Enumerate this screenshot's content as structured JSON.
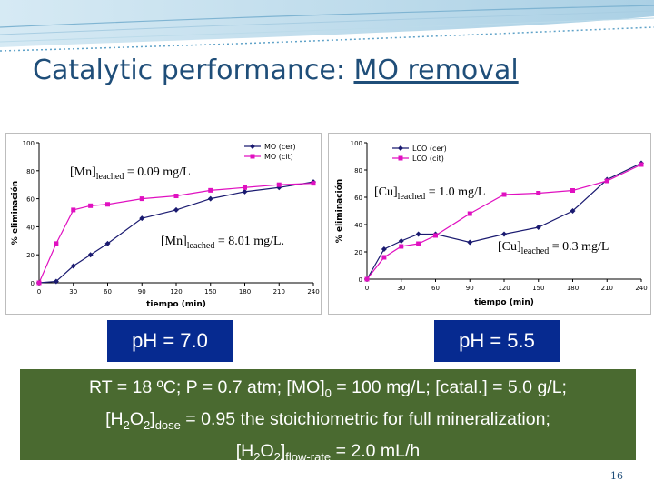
{
  "slide": {
    "title_prefix": "Catalytic performance: ",
    "title_underlined": "MO removal",
    "page_number": "16"
  },
  "colors": {
    "title": "#1f4e79",
    "series_cer": "#1a1a70",
    "series_cit": "#e010c0",
    "ph_box": "#062a90",
    "conditions_box": "#4a6a30"
  },
  "chart_data": [
    {
      "type": "line",
      "xlabel": "tiempo (min)",
      "ylabel": "% eliminación",
      "xlim": [
        0,
        240
      ],
      "ylim": [
        0,
        100
      ],
      "xticks": [
        "0",
        "30",
        "60",
        "90",
        "120",
        "150",
        "180",
        "210",
        "240"
      ],
      "yticks": [
        "0",
        "20",
        "40",
        "60",
        "80",
        "100"
      ],
      "legend_position": "top-right",
      "series": [
        {
          "name": "MO (cer)",
          "marker": "diamond",
          "x": [
            0,
            15,
            30,
            45,
            60,
            90,
            120,
            150,
            180,
            210,
            240
          ],
          "y": [
            0,
            1,
            12,
            20,
            28,
            46,
            52,
            60,
            65,
            68,
            72
          ]
        },
        {
          "name": "MO (cit)",
          "marker": "square",
          "x": [
            0,
            15,
            30,
            45,
            60,
            90,
            120,
            150,
            180,
            210,
            240
          ],
          "y": [
            0,
            28,
            52,
            55,
            56,
            60,
            62,
            66,
            68,
            70,
            71
          ]
        }
      ],
      "annotations": [
        {
          "base": "[Mn]",
          "sub": "leached",
          "rest": " = 0.09 mg/L"
        },
        {
          "base": "[Mn]",
          "sub": "leached",
          "rest": " = 8.01 mg/L."
        }
      ]
    },
    {
      "type": "line",
      "xlabel": "tiempo (min)",
      "ylabel": "% eliminación",
      "xlim": [
        0,
        240
      ],
      "ylim": [
        0,
        100
      ],
      "xticks": [
        "0",
        "30",
        "60",
        "90",
        "120",
        "150",
        "180",
        "210",
        "240"
      ],
      "yticks": [
        "0",
        "20",
        "40",
        "60",
        "80",
        "100"
      ],
      "legend_position": "top-center",
      "series": [
        {
          "name": "LCO (cer)",
          "marker": "diamond",
          "x": [
            0,
            15,
            30,
            45,
            60,
            90,
            120,
            150,
            180,
            210,
            240
          ],
          "y": [
            0,
            22,
            28,
            33,
            33,
            27,
            33,
            38,
            50,
            73,
            85
          ]
        },
        {
          "name": "LCO (cit)",
          "marker": "square",
          "x": [
            0,
            15,
            30,
            45,
            60,
            90,
            120,
            150,
            180,
            210,
            240
          ],
          "y": [
            0,
            16,
            24,
            26,
            32,
            48,
            62,
            63,
            65,
            72,
            84
          ]
        }
      ],
      "annotations": [
        {
          "base": "[Cu]",
          "sub": "leached",
          "rest": " = 1.0 mg/L"
        },
        {
          "base": "[Cu]",
          "sub": "leached",
          "rest": " = 0.3 mg/L"
        }
      ]
    }
  ],
  "ph_left": "pH = 7.0",
  "ph_right": "pH = 5.5",
  "conditions": {
    "line1": "RT = 18 ºC; P = 0.7 atm; [MO]",
    "line1_sub": "0",
    "line1_rest": " = 100 mg/L;  [catal.] = 5.0 g/L;",
    "line2_a": "[H",
    "line2_sub1": "2",
    "line2_b": "O",
    "line2_sub2": "2",
    "line2_c": "]",
    "line2_sub3": "dose",
    "line2_rest": " = 0.95 the stoichiometric for full mineralization;",
    "line3_a": "[H",
    "line3_sub1": "2",
    "line3_b": "O",
    "line3_sub2": "2",
    "line3_c": "]",
    "line3_sub3": "flow-rate",
    "line3_rest": " = 2.0 mL/h"
  }
}
